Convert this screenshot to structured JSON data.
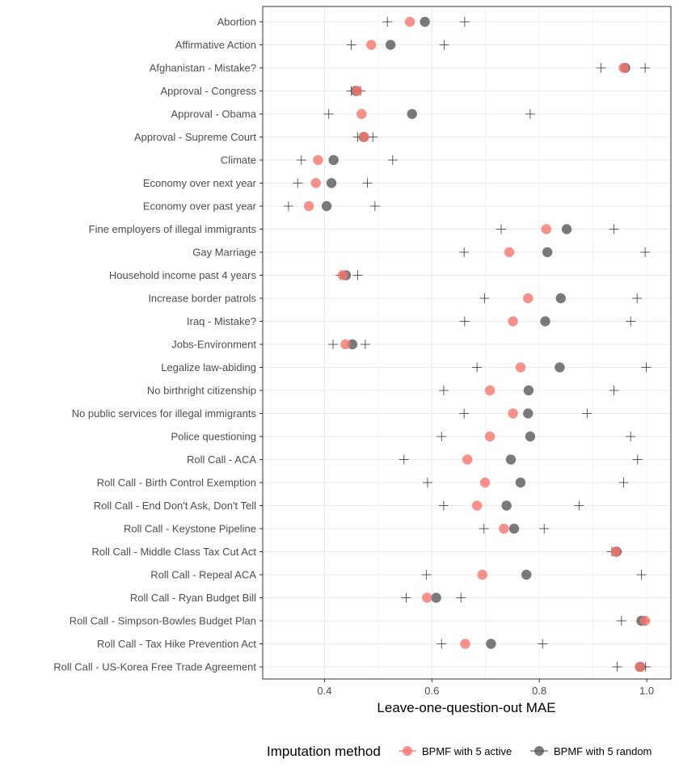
{
  "chart_data": {
    "type": "scatter",
    "title": "",
    "xlabel": "Leave-one-question-out MAE",
    "ylabel": "",
    "xlim": [
      0.285,
      1.045
    ],
    "x_ticks": [
      "0.4",
      "0.6",
      "0.8",
      "1.0"
    ],
    "grid": true,
    "legend_title": "Imputation method",
    "legend_position": "bottom",
    "categories": [
      "Abortion",
      "Affirmative Action",
      "Afghanistan - Mistake?",
      "Approval - Congress",
      "Approval - Obama",
      "Approval - Supreme Court",
      "Climate",
      "Economy over next year",
      "Economy over past year",
      "Fine employers of illegal immigrants",
      "Gay Marriage",
      "Household income past 4 years",
      "Increase border patrols",
      "Iraq - Mistake?",
      "Jobs-Environment",
      "Legalize law-abiding",
      "No birthright citizenship",
      "No public services for illegal immigrants",
      "Police questioning",
      "Roll Call - ACA",
      "Roll Call - Birth Control Exemption",
      "Roll Call - End Don't Ask, Don't Tell",
      "Roll Call - Keystone Pipeline",
      "Roll Call - Middle Class Tax Cut Act",
      "Roll Call - Repeal ACA",
      "Roll Call - Ryan Budget Bill",
      "Roll Call - Simpson-Bowles Budget Plan",
      "Roll Call - Tax Hike Prevention Act",
      "Roll Call - US-Korea Free Trade Agreement"
    ],
    "series": [
      {
        "name": "BPMF with 5 random",
        "color": "#595959",
        "values": [
          0.587,
          0.523,
          0.96,
          0.458,
          0.563,
          0.473,
          0.417,
          0.413,
          0.404,
          0.851,
          0.815,
          0.44,
          0.84,
          0.811,
          0.452,
          0.838,
          0.78,
          0.779,
          0.783,
          0.747,
          0.765,
          0.739,
          0.753,
          0.944,
          0.776,
          0.608,
          0.99,
          0.71,
          0.988
        ]
      },
      {
        "name": "BPMF with 5 active",
        "color": "#f8766d",
        "values": [
          0.559,
          0.487,
          0.957,
          0.461,
          0.469,
          0.474,
          0.388,
          0.384,
          0.371,
          0.813,
          0.744,
          0.434,
          0.779,
          0.751,
          0.439,
          0.765,
          0.708,
          0.751,
          0.708,
          0.666,
          0.699,
          0.684,
          0.734,
          0.942,
          0.694,
          0.591,
          0.997,
          0.662,
          0.987
        ]
      }
    ],
    "intervals": [
      [
        0.517,
        0.661
      ],
      [
        0.45,
        0.623
      ],
      [
        0.915,
        0.997
      ],
      [
        0.45,
        0.467
      ],
      [
        0.408,
        0.783
      ],
      [
        0.462,
        0.49
      ],
      [
        0.357,
        0.527
      ],
      [
        0.35,
        0.48
      ],
      [
        0.333,
        0.494
      ],
      [
        0.729,
        0.939
      ],
      [
        0.66,
        0.997
      ],
      [
        0.43,
        0.462
      ],
      [
        0.698,
        0.982
      ],
      [
        0.661,
        0.97
      ],
      [
        0.416,
        0.476
      ],
      [
        0.684,
        0.999
      ],
      [
        0.622,
        0.939
      ],
      [
        0.66,
        0.889
      ],
      [
        0.618,
        0.97
      ],
      [
        0.548,
        0.983
      ],
      [
        0.592,
        0.957
      ],
      [
        0.622,
        0.874
      ],
      [
        0.697,
        0.809
      ],
      [
        0.935,
        0.945
      ],
      [
        0.59,
        0.99
      ],
      [
        0.552,
        0.654
      ],
      [
        0.953,
        0.997
      ],
      [
        0.618,
        0.806
      ],
      [
        0.945,
        0.998
      ]
    ]
  }
}
